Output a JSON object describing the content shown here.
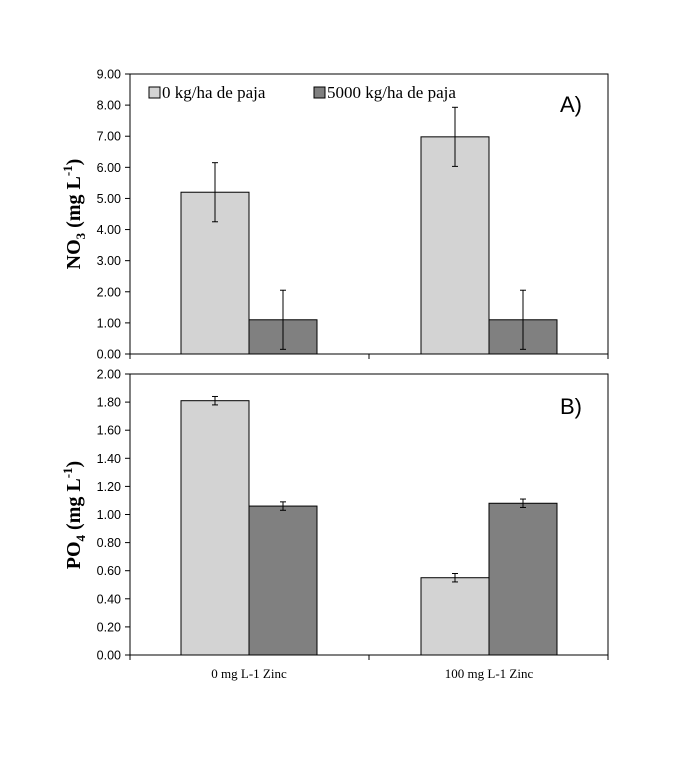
{
  "colors": {
    "series_light": "#d3d3d3",
    "series_dark": "#808080",
    "stroke": "#000000"
  },
  "legend": {
    "items": [
      "0 kg/ha de paja",
      "5000 kg/ha de paja"
    ],
    "placement": "top-left"
  },
  "chart_data": [
    {
      "type": "bar",
      "panel_label": "A)",
      "ylabel_main": "NO",
      "ylabel_sub": "3",
      "ylabel_rest": " (mg L",
      "ylabel_sup": "-1",
      "ylabel_end": ")",
      "ylim": [
        0,
        9
      ],
      "y_ticks": [
        "0.00",
        "1.00",
        "2.00",
        "3.00",
        "4.00",
        "5.00",
        "6.00",
        "7.00",
        "8.00",
        "9.00"
      ],
      "categories": [
        "0 mg L-1 Zinc",
        "100 mg L-1 Zinc"
      ],
      "series": [
        {
          "name": "0 kg/ha de paja",
          "values": [
            5.2,
            6.98
          ],
          "errors": [
            0.95,
            0.95
          ]
        },
        {
          "name": "5000 kg/ha de paja",
          "values": [
            1.1,
            1.1
          ],
          "errors": [
            0.95,
            0.95
          ]
        }
      ],
      "grid": false
    },
    {
      "type": "bar",
      "panel_label": "B)",
      "ylabel_main": "PO",
      "ylabel_sub": "4",
      "ylabel_rest": " (mg L",
      "ylabel_sup": "-1",
      "ylabel_end": ")",
      "ylim": [
        0,
        2
      ],
      "y_ticks": [
        "0.00",
        "0.20",
        "0.40",
        "0.60",
        "0.80",
        "1.00",
        "1.20",
        "1.40",
        "1.60",
        "1.80",
        "2.00"
      ],
      "categories": [
        "0 mg L-1 Zinc",
        "100 mg L-1 Zinc"
      ],
      "series": [
        {
          "name": "0 kg/ha de paja",
          "values": [
            1.81,
            0.55
          ],
          "errors": [
            0.03,
            0.03
          ]
        },
        {
          "name": "5000 kg/ha de paja",
          "values": [
            1.06,
            1.08
          ],
          "errors": [
            0.03,
            0.03
          ]
        }
      ],
      "grid": false
    }
  ]
}
